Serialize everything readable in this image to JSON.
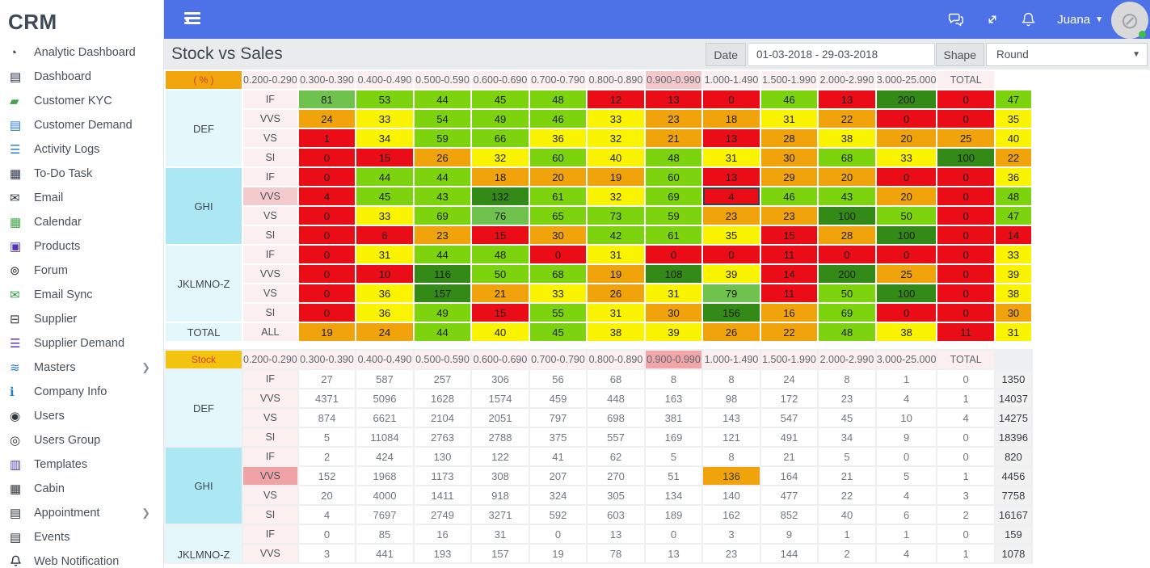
{
  "app": {
    "logo": "CRM"
  },
  "sidebar": {
    "items": [
      {
        "label": "Analytic Dashboard",
        "icon": "gauge-icon",
        "has_submenu": false
      },
      {
        "label": "Dashboard",
        "icon": "dashboard-icon",
        "has_submenu": false
      },
      {
        "label": "Customer KYC",
        "icon": "book-icon",
        "has_submenu": false
      },
      {
        "label": "Customer Demand",
        "icon": "file-icon",
        "has_submenu": false
      },
      {
        "label": "Activity Logs",
        "icon": "list-icon",
        "has_submenu": false
      },
      {
        "label": "To-Do Task",
        "icon": "task-icon",
        "has_submenu": false
      },
      {
        "label": "Email",
        "icon": "envelope-icon",
        "has_submenu": false
      },
      {
        "label": "Calendar",
        "icon": "calendar-icon",
        "has_submenu": false
      },
      {
        "label": "Products",
        "icon": "cart-icon",
        "has_submenu": false
      },
      {
        "label": "Forum",
        "icon": "forum-icon",
        "has_submenu": false
      },
      {
        "label": "Email Sync",
        "icon": "envelope-sync-icon",
        "has_submenu": false
      },
      {
        "label": "Supplier",
        "icon": "truck-icon",
        "has_submenu": false
      },
      {
        "label": "Supplier Demand",
        "icon": "supplier-demand-icon",
        "has_submenu": false
      },
      {
        "label": "Masters",
        "icon": "layers-icon",
        "has_submenu": true
      },
      {
        "label": "Company Info",
        "icon": "info-icon",
        "has_submenu": false
      },
      {
        "label": "Users",
        "icon": "users-icon",
        "has_submenu": false
      },
      {
        "label": "Users Group",
        "icon": "user-group-icon",
        "has_submenu": false
      },
      {
        "label": "Templates",
        "icon": "templates-icon",
        "has_submenu": false
      },
      {
        "label": "Cabin",
        "icon": "cabin-icon",
        "has_submenu": false
      },
      {
        "label": "Appointment",
        "icon": "appointment-icon",
        "has_submenu": true
      },
      {
        "label": "Events",
        "icon": "events-icon",
        "has_submenu": false
      },
      {
        "label": "Web Notification",
        "icon": "bell-icon",
        "has_submenu": false
      }
    ]
  },
  "topbar": {
    "user": "Juana",
    "icons": [
      "chat-icon",
      "fullscreen-icon",
      "bell-icon"
    ]
  },
  "subheader": {
    "title": "Stock vs Sales",
    "date_label": "Date",
    "date_value": "01-03-2018 - 29-03-2018",
    "shape_label": "Shape",
    "shape_value": "Round"
  },
  "colors": {
    "topbar_blue": "#4D72E8",
    "red": "#EA0D17",
    "orange": "#F0A30B",
    "yellow": "#FBF400",
    "green": "#7CD30E",
    "mid_green": "#6FC24D",
    "dark_green": "#338A16",
    "highlight_pink_light": "#F4C8CA",
    "highlight_pink_dark": "#F1A6AA",
    "category_cyan": "#ACE8F4"
  },
  "tables": {
    "columns": [
      "0.200-0.290",
      "0.300-0.390",
      "0.400-0.490",
      "0.500-0.590",
      "0.600-0.690",
      "0.700-0.790",
      "0.800-0.890",
      "0.900-0.990",
      "1.000-1.490",
      "1.500-1.990",
      "2.000-2.990",
      "3.000-25.000"
    ],
    "total_label": "TOTAL",
    "color_scale_thresholds": {
      "red_max": 15,
      "orange_max": 30,
      "yellow_max": 41,
      "green_max": 75,
      "mid_green_max": 99
    },
    "highlight": {
      "column_index": 7,
      "group": "GHI",
      "row": "VVS"
    },
    "percent_table": {
      "corner_label": "( % )",
      "groups": [
        {
          "name": "DEF",
          "rows": [
            {
              "label": "IF",
              "values": [
                81,
                53,
                44,
                45,
                48,
                12,
                13,
                0,
                46,
                13,
                200,
                0
              ],
              "total": 47
            },
            {
              "label": "VVS",
              "values": [
                24,
                33,
                54,
                49,
                46,
                33,
                23,
                18,
                31,
                22,
                0,
                0
              ],
              "total": 35
            },
            {
              "label": "VS",
              "values": [
                1,
                34,
                59,
                66,
                36,
                32,
                21,
                13,
                28,
                38,
                20,
                25
              ],
              "total": 40
            },
            {
              "label": "SI",
              "values": [
                0,
                15,
                26,
                32,
                60,
                40,
                48,
                31,
                30,
                68,
                33,
                100
              ],
              "total": 22
            }
          ]
        },
        {
          "name": "GHI",
          "rows": [
            {
              "label": "IF",
              "values": [
                0,
                44,
                44,
                18,
                20,
                19,
                60,
                13,
                29,
                20,
                0,
                0
              ],
              "total": 36
            },
            {
              "label": "VVS",
              "values": [
                4,
                45,
                43,
                132,
                61,
                32,
                69,
                4,
                46,
                43,
                20,
                0
              ],
              "total": 48
            },
            {
              "label": "VS",
              "values": [
                0,
                33,
                69,
                76,
                65,
                73,
                59,
                23,
                23,
                100,
                50,
                0
              ],
              "total": 47
            },
            {
              "label": "SI",
              "values": [
                0,
                6,
                23,
                15,
                30,
                42,
                61,
                35,
                15,
                28,
                100,
                0
              ],
              "total": 14
            }
          ]
        },
        {
          "name": "JKLMNO-Z",
          "rows": [
            {
              "label": "IF",
              "values": [
                0,
                31,
                44,
                48,
                0,
                31,
                0,
                0,
                11,
                0,
                0,
                0
              ],
              "total": 33
            },
            {
              "label": "VVS",
              "values": [
                0,
                10,
                116,
                50,
                68,
                19,
                108,
                39,
                14,
                200,
                25,
                0
              ],
              "total": 39
            },
            {
              "label": "VS",
              "values": [
                0,
                36,
                157,
                21,
                33,
                26,
                31,
                79,
                11,
                50,
                100,
                0
              ],
              "total": 38
            },
            {
              "label": "SI",
              "values": [
                0,
                36,
                49,
                15,
                55,
                31,
                30,
                156,
                16,
                69,
                0,
                0
              ],
              "total": 30
            }
          ]
        },
        {
          "name": "TOTAL",
          "rows": [
            {
              "label": "ALL",
              "values": [
                19,
                24,
                44,
                40,
                45,
                38,
                39,
                26,
                22,
                48,
                38,
                11
              ],
              "total": 31
            }
          ]
        }
      ]
    },
    "stock_table": {
      "corner_label": "Stock",
      "groups": [
        {
          "name": "DEF",
          "rows": [
            {
              "label": "IF",
              "values": [
                27,
                587,
                257,
                306,
                56,
                68,
                8,
                8,
                24,
                8,
                1,
                0
              ],
              "total": 1350
            },
            {
              "label": "VVS",
              "values": [
                4371,
                5096,
                1628,
                1574,
                459,
                448,
                163,
                98,
                172,
                23,
                4,
                1
              ],
              "total": 14037
            },
            {
              "label": "VS",
              "values": [
                874,
                6621,
                2104,
                2051,
                797,
                698,
                381,
                143,
                547,
                45,
                10,
                4
              ],
              "total": 14275
            },
            {
              "label": "SI",
              "values": [
                5,
                11084,
                2763,
                2788,
                375,
                557,
                169,
                121,
                491,
                34,
                9,
                0
              ],
              "total": 18396
            }
          ]
        },
        {
          "name": "GHI",
          "rows": [
            {
              "label": "IF",
              "values": [
                2,
                424,
                130,
                122,
                41,
                62,
                5,
                8,
                21,
                5,
                0,
                0
              ],
              "total": 820
            },
            {
              "label": "VVS",
              "values": [
                152,
                1968,
                1173,
                308,
                207,
                270,
                51,
                136,
                164,
                21,
                5,
                1
              ],
              "total": 4456
            },
            {
              "label": "VS",
              "values": [
                20,
                4000,
                1411,
                918,
                324,
                305,
                134,
                140,
                477,
                22,
                4,
                3
              ],
              "total": 7758
            },
            {
              "label": "SI",
              "values": [
                4,
                7697,
                2749,
                3271,
                592,
                603,
                189,
                162,
                852,
                40,
                6,
                2
              ],
              "total": 16167
            }
          ]
        },
        {
          "name": "JKLMNO-Z",
          "rows": [
            {
              "label": "IF",
              "values": [
                0,
                85,
                16,
                31,
                0,
                13,
                0,
                3,
                9,
                1,
                1,
                0
              ],
              "total": 159
            },
            {
              "label": "VVS",
              "values": [
                3,
                441,
                193,
                157,
                19,
                78,
                13,
                23,
                144,
                2,
                4,
                1
              ],
              "total": 1078
            }
          ]
        }
      ]
    }
  }
}
